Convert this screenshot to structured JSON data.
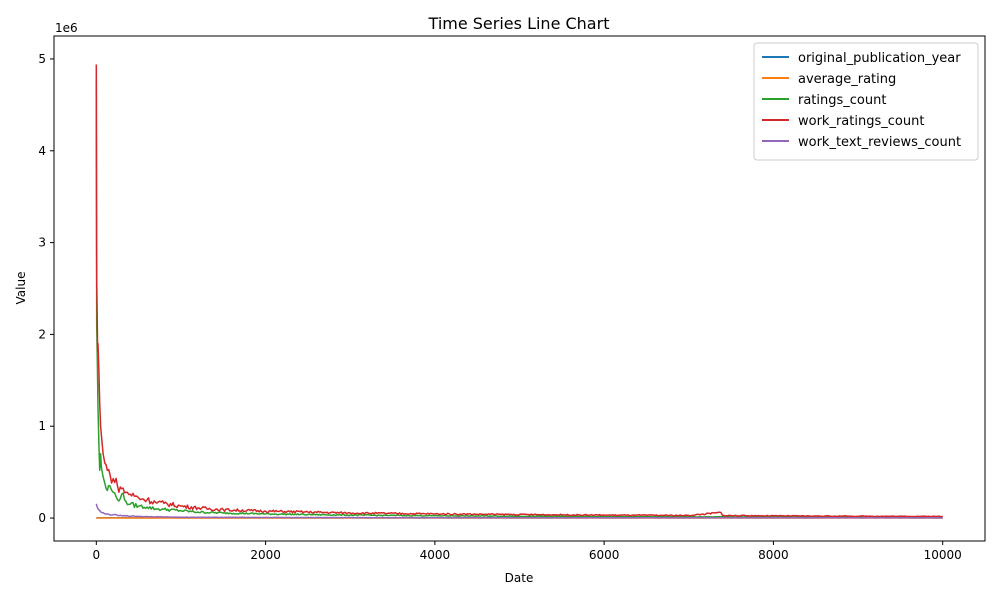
{
  "chart_data": {
    "type": "line",
    "title": "Time Series Line Chart",
    "xlabel": "Date",
    "ylabel": "Value",
    "y_offset_label": "1e6",
    "xlim": [
      -500,
      10500
    ],
    "ylim": [
      -250000,
      5250000
    ],
    "xticks": [
      0,
      2000,
      4000,
      6000,
      8000,
      10000
    ],
    "xtick_labels": [
      "0",
      "2000",
      "4000",
      "6000",
      "8000",
      "10000"
    ],
    "yticks": [
      0,
      1000000,
      2000000,
      3000000,
      4000000,
      5000000
    ],
    "ytick_labels": [
      "0",
      "1",
      "2",
      "3",
      "4",
      "5"
    ],
    "grid": false,
    "legend_position": "top-right",
    "series": [
      {
        "name": "original_publication_year",
        "color": "#1f77b4",
        "x": [
          0,
          10000
        ],
        "values": [
          2000,
          2000
        ]
      },
      {
        "name": "average_rating",
        "color": "#ff7f0e",
        "x": [
          0,
          10000
        ],
        "values": [
          4,
          4
        ]
      },
      {
        "name": "ratings_count",
        "color": "#2ca02c",
        "x": [
          0,
          2,
          5,
          10,
          15,
          20,
          30,
          40,
          50,
          60,
          80,
          100,
          130,
          160,
          200,
          250,
          300,
          350,
          400,
          500,
          600,
          700,
          800,
          1000,
          1200,
          1500,
          2000,
          2500,
          3000,
          4000,
          5000,
          6000,
          7000,
          8000,
          9000,
          10000
        ],
        "values": [
          4780000,
          3300000,
          2100000,
          1800000,
          1500000,
          1200000,
          800000,
          520000,
          700000,
          550000,
          450000,
          380000,
          300000,
          350000,
          280000,
          200000,
          260000,
          180000,
          150000,
          130000,
          120000,
          100000,
          95000,
          80000,
          65000,
          55000,
          45000,
          38000,
          32000,
          25000,
          20000,
          16000,
          14000,
          12000,
          10000,
          9000
        ]
      },
      {
        "name": "work_ratings_count",
        "color": "#d62728",
        "x": [
          0,
          2,
          5,
          10,
          15,
          20,
          30,
          40,
          50,
          60,
          80,
          100,
          130,
          160,
          200,
          250,
          300,
          350,
          400,
          500,
          600,
          700,
          800,
          1000,
          1200,
          1500,
          2000,
          2500,
          3000,
          4000,
          5000,
          6000,
          7000,
          7380,
          7400,
          8000,
          9000,
          10000
        ],
        "values": [
          4940000,
          3600000,
          2600000,
          2200000,
          1820000,
          1900000,
          1600000,
          1250000,
          1000000,
          900000,
          700000,
          600000,
          520000,
          480000,
          430000,
          350000,
          320000,
          280000,
          260000,
          220000,
          200000,
          170000,
          160000,
          130000,
          110000,
          90000,
          75000,
          65000,
          55000,
          45000,
          38000,
          32000,
          28000,
          60000,
          28000,
          24000,
          20000,
          18000
        ]
      },
      {
        "name": "work_text_reviews_count",
        "color": "#9467bd",
        "x": [
          0,
          10,
          20,
          40,
          60,
          100,
          150,
          200,
          300,
          500,
          800,
          1000,
          2000,
          4000,
          6000,
          8000,
          10000
        ],
        "values": [
          155000,
          120000,
          100000,
          80000,
          60000,
          45000,
          40000,
          35000,
          25000,
          18000,
          12000,
          9000,
          6000,
          4000,
          3000,
          2500,
          2000
        ]
      }
    ]
  }
}
